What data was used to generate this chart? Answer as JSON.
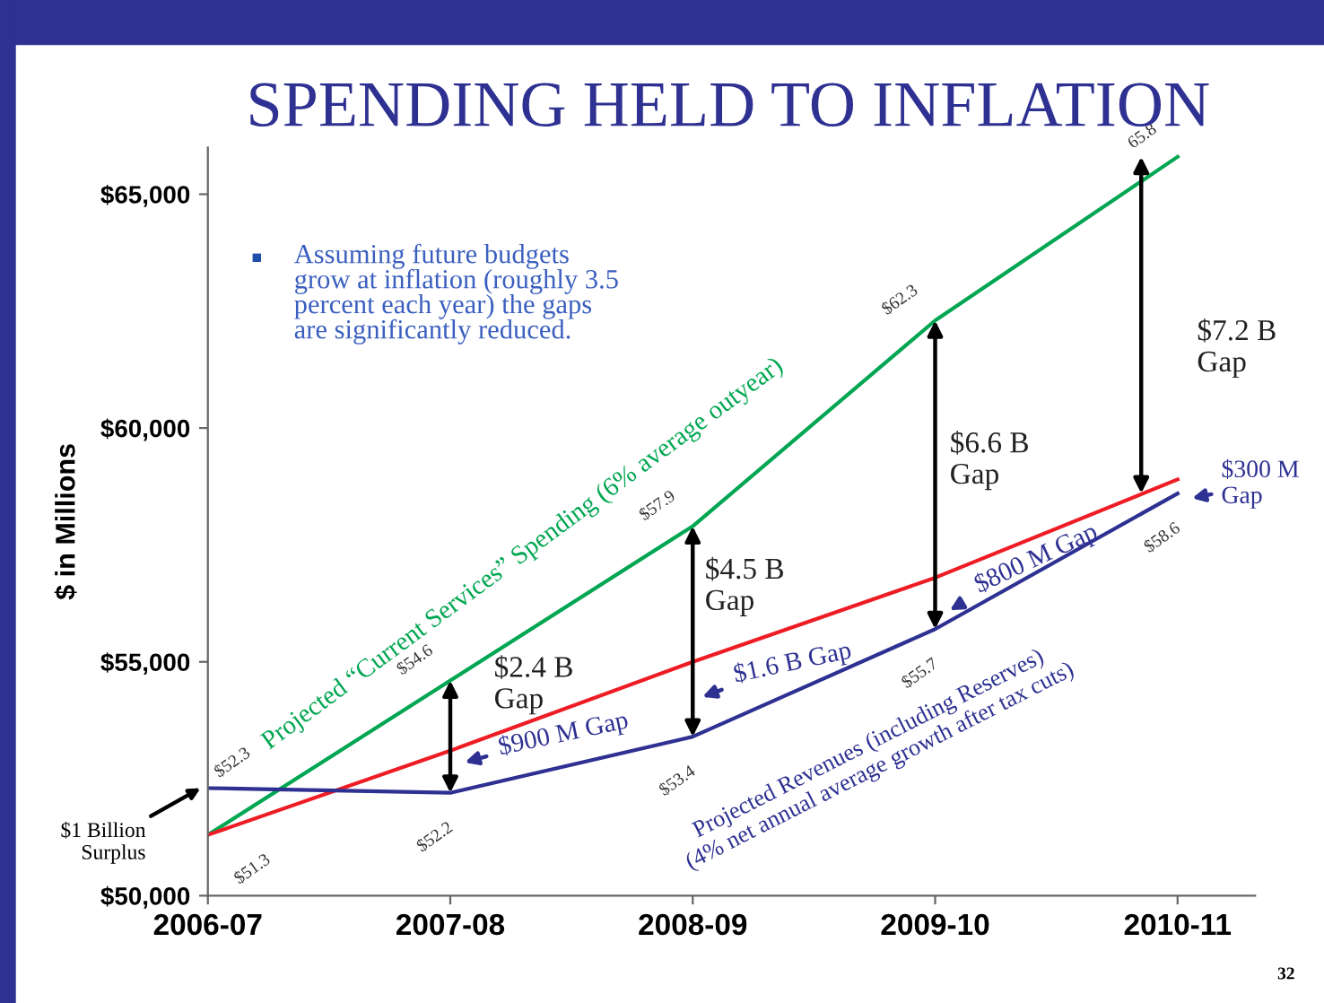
{
  "chart_data": {
    "type": "line",
    "title": "SPENDING HELD TO INFLATION",
    "ylabel": "$ in Millions",
    "categories": [
      "2006-07",
      "2007-08",
      "2008-09",
      "2009-10",
      "2010-11"
    ],
    "series": [
      {
        "name": "Projected “Current Services” Spending (6% average outyear)",
        "color": "#00a651",
        "values": [
          51300,
          54600,
          57900,
          62300,
          65800
        ]
      },
      {
        "color": "#ee1c24",
        "values": [
          51300,
          53100,
          55000,
          56800,
          58900
        ]
      },
      {
        "name": "Projected Revenues (including Reserves) (4% net annual average growth after tax cuts)",
        "color": "#2e3192",
        "values": [
          52300,
          52200,
          53400,
          55700,
          58600
        ]
      }
    ],
    "ylim": [
      50000,
      66000
    ],
    "yticks": [
      {
        "value": 50000,
        "label": "$50,000"
      },
      {
        "value": 55000,
        "label": "$55,000"
      },
      {
        "value": 60000,
        "label": "$60,000"
      },
      {
        "value": 65000,
        "label": "$65,000"
      }
    ],
    "grid": false,
    "marker": "none",
    "line_style": "solid",
    "annotations": [
      {
        "text": "$51.3",
        "x": "2006-07",
        "y": 51300
      },
      {
        "text": "$54.6",
        "x": "2007-08",
        "y": 54600
      },
      {
        "text": "$57.9",
        "x": "2008-09",
        "y": 57900
      },
      {
        "text": "$62.3",
        "x": "2009-10",
        "y": 62300
      },
      {
        "text": "65.8",
        "x": "2010-11",
        "y": 65800
      },
      {
        "text": "$52.3",
        "x": "2006-07",
        "y": 52300
      },
      {
        "text": "$52.2",
        "x": "2007-08",
        "y": 52200
      },
      {
        "text": "$53.4",
        "x": "2008-09",
        "y": 53400
      },
      {
        "text": "$55.7",
        "x": "2009-10",
        "y": 55700
      },
      {
        "text": "$58.6",
        "x": "2010-11",
        "y": 58600
      },
      {
        "text": "$1 Billion\nSurplus",
        "x": "2006-07",
        "y": 52300
      },
      {
        "text": "$2.4 B\nGap",
        "x": "2007-08",
        "y": 54600
      },
      {
        "text": "$900 M Gap",
        "x": "2007-08",
        "y": 52200
      },
      {
        "text": "$4.5 B\nGap",
        "x": "2008-09",
        "y": 57900
      },
      {
        "text": "$1.6 B Gap",
        "x": "2008-09",
        "y": 53400
      },
      "$6.6 B\nGap",
      {
        "text": "$800 M Gap",
        "x": "2009-10",
        "y": 55700
      },
      "$7.2 B\nGap",
      {
        "text": "$300 M\nGap",
        "x": "2010-11",
        "y": 58600
      },
      "■",
      "Assuming future budgets\ngrow at inflation (roughly 3.5\npercent each year) the gaps\nare significantly reduced.",
      "32"
    ]
  }
}
